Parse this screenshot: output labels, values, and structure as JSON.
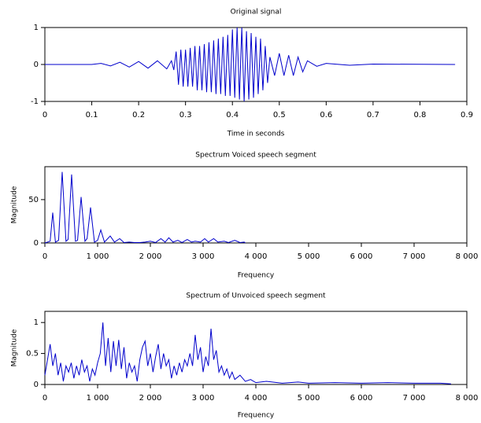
{
  "chart_data": [
    {
      "type": "line",
      "title": "Original signal",
      "xlabel": "Time in seconds",
      "color": "#0000cc",
      "x": [
        0,
        0.1,
        0.12,
        0.14,
        0.16,
        0.18,
        0.2,
        0.22,
        0.24,
        0.26,
        0.27,
        0.275,
        0.28,
        0.285,
        0.29,
        0.295,
        0.3,
        0.305,
        0.31,
        0.315,
        0.32,
        0.325,
        0.33,
        0.335,
        0.34,
        0.345,
        0.35,
        0.355,
        0.36,
        0.365,
        0.37,
        0.375,
        0.38,
        0.385,
        0.39,
        0.395,
        0.4,
        0.405,
        0.41,
        0.415,
        0.42,
        0.425,
        0.43,
        0.435,
        0.44,
        0.445,
        0.45,
        0.455,
        0.46,
        0.465,
        0.47,
        0.475,
        0.48,
        0.49,
        0.5,
        0.51,
        0.52,
        0.53,
        0.54,
        0.55,
        0.56,
        0.58,
        0.6,
        0.65,
        0.7,
        0.875
      ],
      "values": [
        0,
        0,
        0.03,
        -0.04,
        0.06,
        -0.07,
        0.08,
        -0.1,
        0.1,
        -0.12,
        0.1,
        -0.15,
        0.35,
        -0.55,
        0.4,
        -0.6,
        0.4,
        -0.6,
        0.45,
        -0.6,
        0.5,
        -0.7,
        0.5,
        -0.7,
        0.55,
        -0.75,
        0.6,
        -0.75,
        0.65,
        -0.8,
        0.7,
        -0.8,
        0.75,
        -0.85,
        0.8,
        -0.85,
        0.95,
        -0.9,
        1,
        -0.95,
        1,
        -1,
        0.9,
        -0.95,
        0.85,
        -0.9,
        0.75,
        -0.8,
        0.7,
        -0.7,
        0.5,
        -0.5,
        0.2,
        -0.3,
        0.3,
        -0.3,
        0.25,
        -0.3,
        0.2,
        -0.2,
        0.1,
        -0.05,
        0.03,
        -0.02,
        0.01,
        0
      ],
      "xlim": [
        0,
        0.9
      ],
      "xticks": [
        0,
        0.1,
        0.2,
        0.3,
        0.4,
        0.5,
        0.6,
        0.7,
        0.8,
        0.9
      ],
      "ylim": [
        -1,
        1
      ],
      "yticks": [
        -1,
        0,
        1
      ]
    },
    {
      "type": "line",
      "title": "Spectrum Voiced speech segment",
      "xlabel": "Frequency",
      "ylabel": "Magnitude",
      "color": "#0000cc",
      "x": [
        0,
        100,
        149,
        200,
        260,
        328,
        400,
        440,
        507,
        580,
        620,
        687,
        760,
        800,
        866,
        940,
        1000,
        1060,
        1130,
        1239,
        1320,
        1418,
        1500,
        1600,
        1700,
        1800,
        1900,
        2000,
        2100,
        2200,
        2280,
        2350,
        2430,
        2520,
        2600,
        2700,
        2780,
        2850,
        2950,
        3030,
        3100,
        3200,
        3280,
        3400,
        3480,
        3600,
        3700,
        3780,
        3800
      ],
      "values": [
        0,
        2,
        35,
        1,
        3,
        82,
        2,
        4,
        79,
        2,
        3,
        53,
        2,
        5,
        41,
        1,
        3,
        15,
        1,
        8,
        1,
        5,
        0.5,
        1,
        0.5,
        0.5,
        1,
        2,
        0.5,
        5,
        1,
        6,
        1,
        3,
        0.5,
        4,
        1,
        2,
        1,
        5,
        1,
        5,
        1,
        2,
        0.5,
        3,
        0.5,
        1,
        0
      ],
      "xlim": [
        0,
        8000
      ],
      "xticks": [
        0,
        {
          "value": 1000,
          "label": "1 000"
        },
        {
          "value": 2000,
          "label": "2 000"
        },
        {
          "value": 3000,
          "label": "3 000"
        },
        {
          "value": 4000,
          "label": "4 000"
        },
        {
          "value": 5000,
          "label": "5 000"
        },
        {
          "value": 6000,
          "label": "6 000"
        },
        {
          "value": 7000,
          "label": "7 000"
        },
        {
          "value": 8000,
          "label": "8 000"
        }
      ],
      "ylim": [
        0,
        88
      ],
      "yticks": [
        0,
        50
      ]
    },
    {
      "type": "line",
      "title": "Spectrum of Unvoiced speech segment",
      "xlabel": "Frequency",
      "ylabel": "Magnitude",
      "color": "#0000cc",
      "x": [
        0,
        50,
        100,
        150,
        200,
        250,
        300,
        350,
        400,
        450,
        500,
        550,
        600,
        650,
        700,
        750,
        800,
        850,
        900,
        950,
        1000,
        1050,
        1100,
        1150,
        1200,
        1250,
        1300,
        1350,
        1400,
        1450,
        1500,
        1550,
        1600,
        1650,
        1700,
        1750,
        1800,
        1850,
        1900,
        1950,
        2000,
        2050,
        2100,
        2150,
        2200,
        2250,
        2300,
        2350,
        2400,
        2450,
        2500,
        2550,
        2600,
        2650,
        2700,
        2750,
        2800,
        2850,
        2900,
        2950,
        3000,
        3050,
        3100,
        3150,
        3200,
        3250,
        3300,
        3350,
        3400,
        3450,
        3500,
        3550,
        3600,
        3700,
        3800,
        3900,
        4000,
        4200,
        4500,
        4800,
        5000,
        5500,
        6000,
        6500,
        7000,
        7500,
        7700
      ],
      "values": [
        0.15,
        0.4,
        0.65,
        0.3,
        0.5,
        0.15,
        0.35,
        0.05,
        0.3,
        0.2,
        0.35,
        0.1,
        0.3,
        0.15,
        0.4,
        0.2,
        0.3,
        0.05,
        0.25,
        0.15,
        0.35,
        0.5,
        1.0,
        0.3,
        0.75,
        0.2,
        0.7,
        0.3,
        0.72,
        0.25,
        0.6,
        0.1,
        0.35,
        0.2,
        0.3,
        0.05,
        0.4,
        0.6,
        0.7,
        0.3,
        0.5,
        0.2,
        0.45,
        0.65,
        0.25,
        0.5,
        0.3,
        0.4,
        0.1,
        0.3,
        0.15,
        0.35,
        0.2,
        0.4,
        0.3,
        0.5,
        0.3,
        0.8,
        0.4,
        0.6,
        0.2,
        0.45,
        0.3,
        0.9,
        0.4,
        0.55,
        0.2,
        0.3,
        0.15,
        0.25,
        0.1,
        0.2,
        0.08,
        0.15,
        0.05,
        0.08,
        0.03,
        0.05,
        0.02,
        0.04,
        0.02,
        0.03,
        0.02,
        0.03,
        0.02,
        0.02,
        0.01
      ],
      "xlim": [
        0,
        8000
      ],
      "xticks": [
        0,
        {
          "value": 1000,
          "label": "1 000"
        },
        {
          "value": 2000,
          "label": "2 000"
        },
        {
          "value": 3000,
          "label": "3 000"
        },
        {
          "value": 4000,
          "label": "4 000"
        },
        {
          "value": 5000,
          "label": "5 000"
        },
        {
          "value": 6000,
          "label": "6 000"
        },
        {
          "value": 7000,
          "label": "7 000"
        },
        {
          "value": 8000,
          "label": "8 000"
        }
      ],
      "ylim": [
        0,
        1.18
      ],
      "yticks": [
        0,
        0.5,
        1
      ]
    }
  ]
}
